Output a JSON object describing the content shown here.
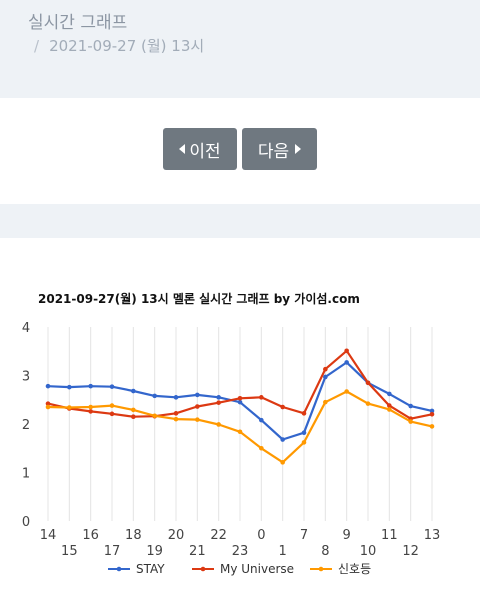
{
  "breadcrumb": {
    "title": "실시간 그래프",
    "separator": "/",
    "current": "2021-09-27 (월) 13시"
  },
  "nav": {
    "prev_label": "이전",
    "next_label": "다음"
  },
  "colors": {
    "stay": "#3366cc",
    "my_universe": "#dc3912",
    "singho": "#ff9900",
    "grid": "#e4e4e4",
    "button": "#6f7880"
  },
  "chart_data": {
    "type": "line",
    "title": "2021-09-27(월) 13시 멜론 실시간 그래프 by 가이섬.com",
    "x": [
      "14",
      "15",
      "16",
      "17",
      "18",
      "19",
      "20",
      "21",
      "22",
      "23",
      "0",
      "1",
      "7",
      "8",
      "9",
      "10",
      "11",
      "12",
      "13"
    ],
    "ylim": [
      0,
      4
    ],
    "yticks": [
      0,
      1,
      2,
      3,
      4
    ],
    "grid": "vertical",
    "legend": "bottom",
    "series": [
      {
        "name": "STAY",
        "color": "#3366cc",
        "values": [
          2.78,
          2.76,
          2.78,
          2.77,
          2.68,
          2.58,
          2.55,
          2.6,
          2.55,
          2.45,
          2.08,
          1.68,
          1.82,
          2.97,
          3.27,
          2.85,
          2.62,
          2.37,
          2.27
        ]
      },
      {
        "name": "My Universe",
        "color": "#dc3912",
        "values": [
          2.42,
          2.32,
          2.26,
          2.21,
          2.15,
          2.16,
          2.22,
          2.36,
          2.44,
          2.53,
          2.55,
          2.35,
          2.22,
          3.13,
          3.51,
          2.85,
          2.38,
          2.11,
          2.2
        ]
      },
      {
        "name": "신호등",
        "color": "#ff9900",
        "values": [
          2.35,
          2.34,
          2.35,
          2.38,
          2.29,
          2.17,
          2.1,
          2.09,
          1.99,
          1.84,
          1.5,
          1.21,
          1.62,
          2.45,
          2.67,
          2.42,
          2.3,
          2.05,
          1.95
        ]
      }
    ]
  }
}
